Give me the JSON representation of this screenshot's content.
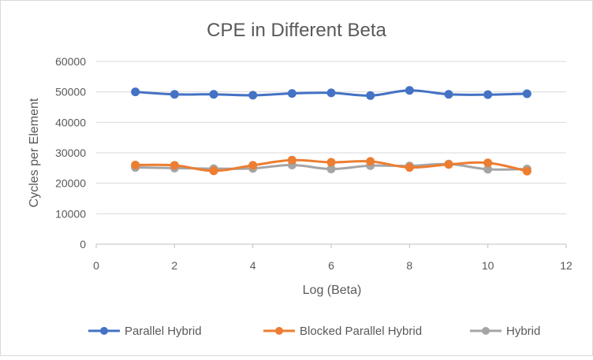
{
  "chart_data": {
    "type": "line",
    "title": "CPE in Different Beta",
    "xlabel": "Log (Beta)",
    "ylabel": "Cycles per Element",
    "xlim": [
      0,
      12
    ],
    "ylim": [
      0,
      60000
    ],
    "x_ticks": [
      "0",
      "2",
      "4",
      "6",
      "8",
      "10",
      "12"
    ],
    "y_ticks": [
      "0",
      "10000",
      "20000",
      "30000",
      "40000",
      "50000",
      "60000"
    ],
    "grid": "horizontal",
    "legend_position": "bottom",
    "x": [
      1,
      2,
      3,
      4,
      5,
      6,
      7,
      8,
      9,
      10,
      11
    ],
    "series": [
      {
        "name": "Parallel Hybrid",
        "color": "#4472C4",
        "values": [
          50000,
          49200,
          49200,
          48900,
          49500,
          49700,
          48800,
          50500,
          49200,
          49100,
          49400
        ]
      },
      {
        "name": "Blocked Parallel Hybrid",
        "color": "#ED7D31",
        "values": [
          26000,
          25900,
          24100,
          25900,
          27600,
          26900,
          27200,
          25200,
          26200,
          26700,
          24000
        ]
      },
      {
        "name": "Hybrid",
        "color": "#A5A5A5",
        "values": [
          25200,
          25000,
          24800,
          24900,
          26000,
          24700,
          25800,
          25700,
          26300,
          24600,
          24700
        ]
      }
    ]
  }
}
